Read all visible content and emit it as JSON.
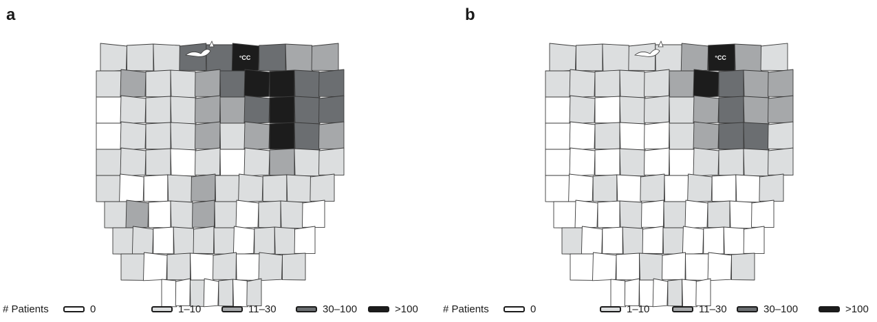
{
  "colors": {
    "0": "#ffffff",
    "1-10": "#dcdedf",
    "11-30": "#a6a8aa",
    "30-100": "#6b6e71",
    ">100": "#1c1c1c",
    "border": "#3a3a3a"
  },
  "legend": {
    "title": "# Patients",
    "items": [
      {
        "label": "0",
        "key": "0"
      },
      {
        "label": "1–10",
        "key": "1-10"
      },
      {
        "label": "11–30",
        "key": "11-30"
      },
      {
        "label": "30–100",
        "key": "30-100"
      },
      {
        "label": ">100",
        "key": ">100"
      }
    ]
  },
  "panels": [
    {
      "id": "a",
      "letter": "a",
      "marker_label": "CC",
      "county_bins": [
        "1-10",
        "1-10",
        "1-10",
        "30-100",
        "30-100",
        ">100",
        "30-100",
        "11-30",
        "11-30",
        "1-10",
        "11-30",
        "1-10",
        "1-10",
        "11-30",
        "30-100",
        ">100",
        ">100",
        "30-100",
        "30-100",
        "0",
        "1-10",
        "1-10",
        "1-10",
        "11-30",
        "11-30",
        "30-100",
        ">100",
        "30-100",
        "30-100",
        "0",
        "1-10",
        "1-10",
        "1-10",
        "11-30",
        "1-10",
        "11-30",
        ">100",
        "30-100",
        "11-30",
        "1-10",
        "1-10",
        "1-10",
        "0",
        "1-10",
        "0",
        "1-10",
        "11-30",
        "1-10",
        "1-10",
        "1-10",
        "0",
        "0",
        "1-10",
        "11-30",
        "1-10",
        "1-10",
        "1-10",
        "1-10",
        "1-10",
        "1-10",
        "11-30",
        "0",
        "1-10",
        "11-30",
        "1-10",
        "0",
        "1-10",
        "1-10",
        "0",
        "1-10",
        "1-10",
        "0",
        "1-10",
        "1-10",
        "1-10",
        "0",
        "1-10",
        "1-10",
        "0",
        "1-10",
        "0",
        "1-10",
        "0",
        "1-10",
        "0",
        "1-10",
        "1-10",
        "0",
        "0",
        "1-10",
        "0",
        "1-10",
        "0",
        "1-10"
      ]
    },
    {
      "id": "b",
      "letter": "b",
      "marker_label": "CC",
      "county_bins": [
        "1-10",
        "1-10",
        "1-10",
        "1-10",
        "1-10",
        "11-30",
        ">100",
        "11-30",
        "1-10",
        "1-10",
        "1-10",
        "1-10",
        "1-10",
        "1-10",
        "11-30",
        ">100",
        "30-100",
        "11-30",
        "11-30",
        "0",
        "1-10",
        "0",
        "1-10",
        "1-10",
        "1-10",
        "11-30",
        "30-100",
        "11-30",
        "11-30",
        "0",
        "0",
        "1-10",
        "0",
        "0",
        "1-10",
        "11-30",
        "30-100",
        "30-100",
        "1-10",
        "0",
        "0",
        "0",
        "1-10",
        "0",
        "0",
        "1-10",
        "1-10",
        "1-10",
        "1-10",
        "0",
        "0",
        "1-10",
        "0",
        "1-10",
        "0",
        "1-10",
        "0",
        "0",
        "1-10",
        "0",
        "0",
        "0",
        "1-10",
        "0",
        "1-10",
        "0",
        "1-10",
        "0",
        "0",
        "1-10",
        "0",
        "0",
        "1-10",
        "0",
        "1-10",
        "0",
        "0",
        "0",
        "0",
        "0",
        "0",
        "0",
        "1-10",
        "0",
        "0",
        "0",
        "1-10",
        "0",
        "0",
        "0",
        "0",
        "1-10",
        "0",
        "0"
      ]
    }
  ]
}
